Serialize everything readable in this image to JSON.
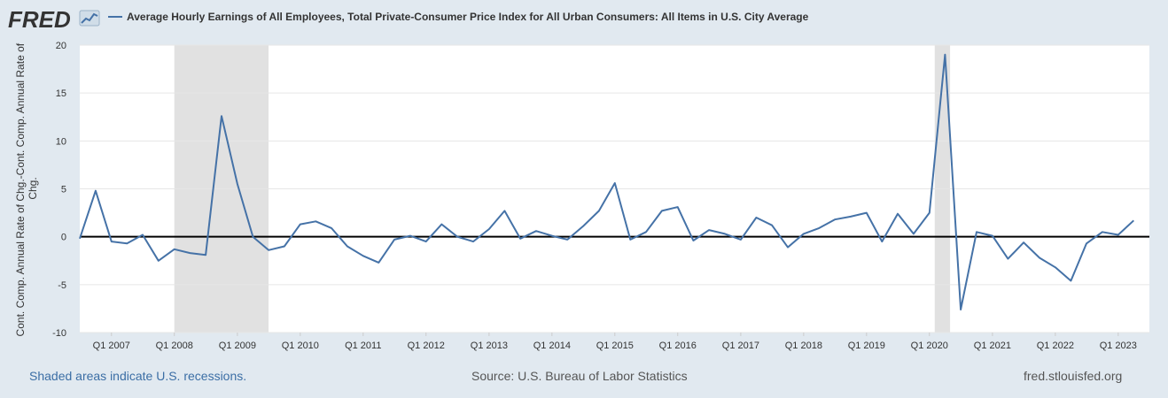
{
  "header": {
    "logo_text": "FRED",
    "legend_label": "Average Hourly Earnings of All Employees, Total Private-Consumer Price Index for All Urban Consumers: All Items in U.S. City Average"
  },
  "footer": {
    "recession_note": "Shaded areas indicate U.S. recessions.",
    "source": "Source: U.S. Bureau of Labor Statistics",
    "site": "fred.stlouisfed.org"
  },
  "colors": {
    "line": "#4572a7",
    "recession": "#e1e1e1",
    "plot_bg": "#ffffff",
    "page_bg": "#e1e9f0"
  },
  "chart_data": {
    "type": "line",
    "title": "",
    "ylabel": "Cont. Comp. Annual Rate of Chg.-Cont. Comp. Annual Rate of Chg.",
    "xlabel": "",
    "ylim": [
      -10,
      20
    ],
    "xlim": [
      "2006-07-01",
      "2023-07-01"
    ],
    "yticks": [
      -10,
      -5,
      0,
      5,
      10,
      15,
      20
    ],
    "xticks": [
      {
        "label": "Q1 2007",
        "date": "2007-01-01"
      },
      {
        "label": "Q1 2008",
        "date": "2008-01-01"
      },
      {
        "label": "Q1 2009",
        "date": "2009-01-01"
      },
      {
        "label": "Q1 2010",
        "date": "2010-01-01"
      },
      {
        "label": "Q1 2011",
        "date": "2011-01-01"
      },
      {
        "label": "Q1 2012",
        "date": "2012-01-01"
      },
      {
        "label": "Q1 2013",
        "date": "2013-01-01"
      },
      {
        "label": "Q1 2014",
        "date": "2014-01-01"
      },
      {
        "label": "Q1 2015",
        "date": "2015-01-01"
      },
      {
        "label": "Q1 2016",
        "date": "2016-01-01"
      },
      {
        "label": "Q1 2017",
        "date": "2017-01-01"
      },
      {
        "label": "Q1 2018",
        "date": "2018-01-01"
      },
      {
        "label": "Q1 2019",
        "date": "2019-01-01"
      },
      {
        "label": "Q1 2020",
        "date": "2020-01-01"
      },
      {
        "label": "Q1 2021",
        "date": "2021-01-01"
      },
      {
        "label": "Q1 2022",
        "date": "2022-01-01"
      },
      {
        "label": "Q1 2023",
        "date": "2023-01-01"
      }
    ],
    "recessions": [
      {
        "start": "2008-01-01",
        "end": "2009-07-01"
      },
      {
        "start": "2020-02-01",
        "end": "2020-04-30"
      }
    ],
    "zero_line": true,
    "grid": true,
    "legend_position": "top",
    "series": [
      {
        "name": "Average Hourly Earnings of All Employees, Total Private-Consumer Price Index for All Urban Consumers: All Items in U.S. City Average",
        "x": [
          "2006-07-01",
          "2006-10-01",
          "2007-01-01",
          "2007-04-01",
          "2007-07-01",
          "2007-10-01",
          "2008-01-01",
          "2008-04-01",
          "2008-07-01",
          "2008-10-01",
          "2009-01-01",
          "2009-04-01",
          "2009-07-01",
          "2009-10-01",
          "2010-01-01",
          "2010-04-01",
          "2010-07-01",
          "2010-10-01",
          "2011-01-01",
          "2011-04-01",
          "2011-07-01",
          "2011-10-01",
          "2012-01-01",
          "2012-04-01",
          "2012-07-01",
          "2012-10-01",
          "2013-01-01",
          "2013-04-01",
          "2013-07-01",
          "2013-10-01",
          "2014-01-01",
          "2014-04-01",
          "2014-07-01",
          "2014-10-01",
          "2015-01-01",
          "2015-04-01",
          "2015-07-01",
          "2015-10-01",
          "2016-01-01",
          "2016-04-01",
          "2016-07-01",
          "2016-10-01",
          "2017-01-01",
          "2017-04-01",
          "2017-07-01",
          "2017-10-01",
          "2018-01-01",
          "2018-04-01",
          "2018-07-01",
          "2018-10-01",
          "2019-01-01",
          "2019-04-01",
          "2019-07-01",
          "2019-10-01",
          "2020-01-01",
          "2020-04-01",
          "2020-07-01",
          "2020-10-01",
          "2021-01-01",
          "2021-04-01",
          "2021-07-01",
          "2021-10-01",
          "2022-01-01",
          "2022-04-01",
          "2022-07-01",
          "2022-10-01",
          "2023-01-01",
          "2023-04-01"
        ],
        "y": [
          -0.2,
          4.8,
          -0.5,
          -0.7,
          0.2,
          -2.5,
          -1.3,
          -1.7,
          -1.9,
          12.6,
          5.5,
          0.0,
          -1.4,
          -1.0,
          1.3,
          1.6,
          0.9,
          -1.0,
          -2.0,
          -2.7,
          -0.3,
          0.1,
          -0.5,
          1.3,
          0.0,
          -0.5,
          0.8,
          2.7,
          -0.2,
          0.6,
          0.1,
          -0.3,
          1.1,
          2.7,
          5.6,
          -0.3,
          0.5,
          2.7,
          3.1,
          -0.4,
          0.7,
          0.3,
          -0.3,
          2.0,
          1.2,
          -1.1,
          0.3,
          0.9,
          1.8,
          2.1,
          2.5,
          -0.5,
          2.4,
          0.3,
          2.5,
          19.0,
          -7.6,
          0.5,
          0.1,
          -2.3,
          -0.6,
          -2.2,
          -3.2,
          -4.6,
          -0.7,
          0.5,
          0.2,
          1.7
        ]
      }
    ]
  }
}
